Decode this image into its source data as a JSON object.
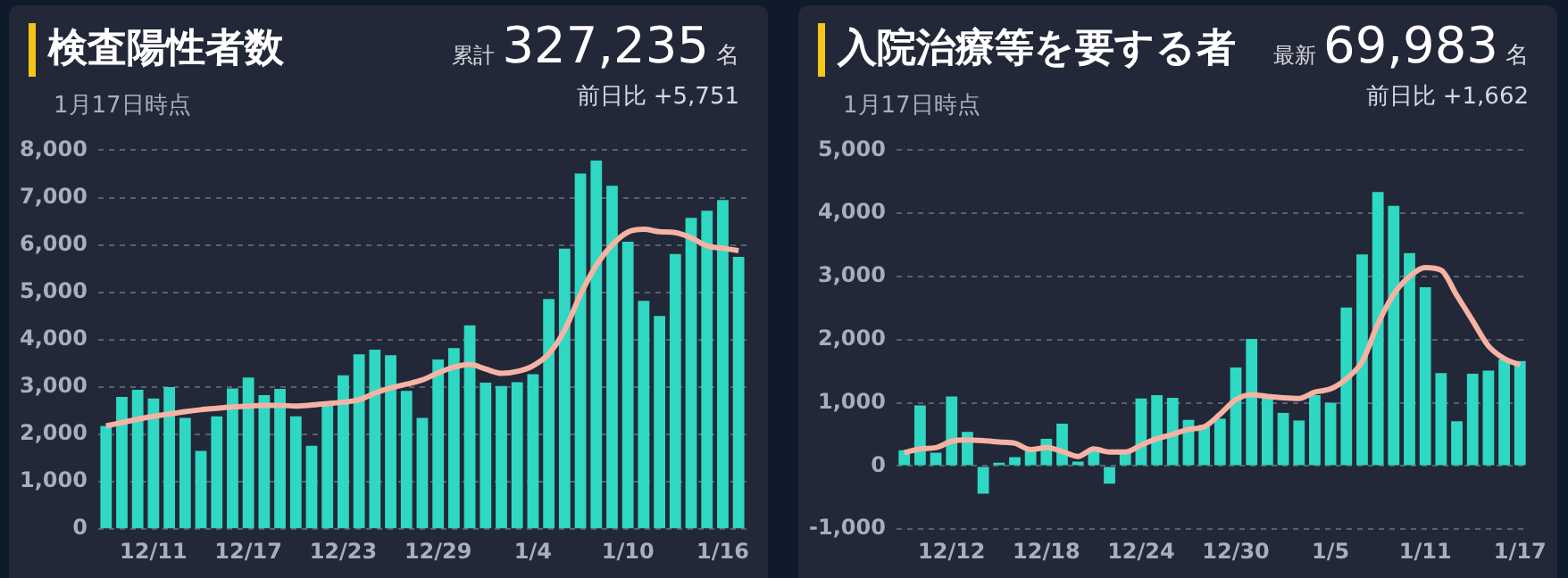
{
  "chart_data": [
    {
      "type": "bar",
      "title": "検査陽性者数",
      "subtitle": "1月17日時点",
      "annotations": [
        "累計",
        "327,235",
        "名",
        "前日比 +5,751"
      ],
      "categories": [
        null,
        null,
        null,
        "12/11",
        null,
        null,
        null,
        null,
        null,
        "12/17",
        null,
        null,
        null,
        null,
        null,
        "12/23",
        null,
        null,
        null,
        null,
        null,
        "12/29",
        null,
        null,
        null,
        null,
        null,
        "1/4",
        null,
        null,
        null,
        null,
        null,
        "1/10",
        null,
        null,
        null,
        null,
        null,
        "1/16",
        null
      ],
      "series": [
        {
          "color": "#2ed8c3",
          "values": [
            2180,
            2790,
            2940,
            2760,
            3000,
            2350,
            1650,
            2380,
            2970,
            3200,
            2830,
            2960,
            2380,
            1760,
            2660,
            3250,
            3690,
            3790,
            3670,
            2920,
            2350,
            3580,
            3820,
            4300,
            3090,
            3020,
            3100,
            3270,
            4860,
            5920,
            7510,
            7780,
            7250,
            6070,
            4820,
            4500,
            5810,
            6570,
            6720,
            6950,
            5750
          ]
        },
        {
          "type": "line",
          "color": "#f6b3a3",
          "values": [
            2180,
            2250,
            2320,
            2380,
            2430,
            2480,
            2520,
            2550,
            2580,
            2600,
            2610,
            2610,
            2600,
            2620,
            2650,
            2680,
            2730,
            2870,
            2980,
            3060,
            3150,
            3300,
            3420,
            3480,
            3380,
            3290,
            3330,
            3450,
            3700,
            4200,
            4950,
            5570,
            6000,
            6270,
            6330,
            6280,
            6260,
            6150,
            5980,
            5930,
            5880
          ]
        }
      ],
      "ylim": [
        0,
        8000
      ],
      "yticks": [
        0,
        {
          "value": 1000,
          "label": "1,000"
        },
        {
          "value": 2000,
          "label": "2,000"
        },
        {
          "value": 3000,
          "label": "3,000"
        },
        {
          "value": 4000,
          "label": "4,000"
        },
        {
          "value": 5000,
          "label": "5,000"
        },
        {
          "value": 6000,
          "label": "6,000"
        },
        {
          "value": 7000,
          "label": "7,000"
        },
        {
          "value": 8000,
          "label": "8,000"
        }
      ],
      "grid": "y"
    },
    {
      "type": "bar",
      "title": "入院治療等を要する者",
      "subtitle": "1月17日時点",
      "annotations": [
        "最新",
        "69,983",
        "名",
        "前日比 +1,662"
      ],
      "categories": [
        null,
        null,
        null,
        "12/12",
        null,
        null,
        null,
        null,
        null,
        "12/18",
        null,
        null,
        null,
        null,
        null,
        "12/24",
        null,
        null,
        null,
        null,
        null,
        "12/30",
        null,
        null,
        null,
        null,
        null,
        "1/5",
        null,
        null,
        null,
        null,
        null,
        "1/11",
        null,
        null,
        null,
        null,
        null,
        "1/17"
      ],
      "series": [
        {
          "color": "#2ed8c3",
          "values": [
            250,
            960,
            210,
            1100,
            540,
            -440,
            50,
            140,
            260,
            430,
            670,
            70,
            240,
            -280,
            210,
            1070,
            1120,
            1080,
            730,
            650,
            750,
            1560,
            2010,
            1100,
            840,
            720,
            1120,
            1000,
            2510,
            3350,
            4340,
            4120,
            3370,
            2830,
            1470,
            710,
            1460,
            1510,
            1690,
            1660
          ]
        },
        {
          "type": "line",
          "color": "#f6b3a3",
          "values": [
            210,
            270,
            290,
            390,
            410,
            400,
            380,
            360,
            260,
            290,
            230,
            150,
            270,
            220,
            220,
            330,
            430,
            500,
            580,
            620,
            820,
            1050,
            1130,
            1100,
            1080,
            1070,
            1170,
            1220,
            1380,
            1650,
            2250,
            2720,
            3000,
            3140,
            3100,
            2700,
            2300,
            1900,
            1700,
            1600
          ]
        }
      ],
      "ylim": [
        -1000,
        5000
      ],
      "yticks": [
        {
          "value": -1000,
          "label": "-1,000"
        },
        0,
        {
          "value": 1000,
          "label": "1,000"
        },
        {
          "value": 2000,
          "label": "2,000"
        },
        {
          "value": 3000,
          "label": "3,000"
        },
        {
          "value": 4000,
          "label": "4,000"
        },
        {
          "value": 5000,
          "label": "5,000"
        }
      ],
      "grid": "y"
    }
  ]
}
